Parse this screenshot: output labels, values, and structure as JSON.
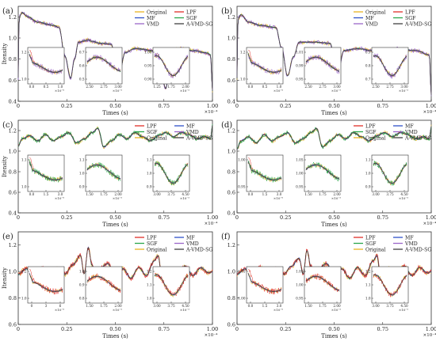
{
  "figure": {
    "legend_entries": [
      "Original",
      "LPF",
      "MF",
      "SGF",
      "VMD",
      "A-VMD-SG"
    ],
    "colors": {
      "Original": "#e8b422",
      "LPF": "#e0302a",
      "MF": "#2f52c8",
      "SGF": "#2aa64a",
      "VMD": "#9a66c8",
      "A-VMD-SG": "#404040"
    }
  },
  "chart_data": [
    {
      "panel": "(a)",
      "type": "line",
      "xlabel": "Times (s)",
      "ylabel": "Itensity",
      "x_multiplier": "×10⁻⁴",
      "xlim": [
        0,
        1
      ],
      "ylim": [
        0.4,
        1.3
      ],
      "xticks": [
        "0",
        "0.25",
        "0.50",
        "0.75",
        "1.00"
      ],
      "yticks": [
        "0.4",
        "0.6",
        "0.8",
        "1.0",
        "1.2"
      ],
      "legend": [
        "Original",
        "MF",
        "VMD",
        "LPF",
        "SGF",
        "A-VMD-SG"
      ],
      "legend_position": "top-right",
      "highlight": "VMD",
      "series_shape": [
        [
          0,
          0.62
        ],
        [
          0.005,
          1.2
        ],
        [
          0.02,
          1.24
        ],
        [
          0.05,
          1.2
        ],
        [
          0.1,
          1.15
        ],
        [
          0.18,
          1.12
        ],
        [
          0.21,
          1.1
        ],
        [
          0.24,
          0.83
        ],
        [
          0.27,
          0.62
        ],
        [
          0.29,
          0.8
        ],
        [
          0.31,
          0.96
        ],
        [
          0.36,
          0.98
        ],
        [
          0.38,
          0.97
        ],
        [
          0.42,
          0.95
        ],
        [
          0.48,
          0.94
        ],
        [
          0.5,
          0.8
        ],
        [
          0.52,
          0.66
        ],
        [
          0.55,
          0.86
        ],
        [
          0.6,
          0.9
        ],
        [
          0.7,
          0.88
        ],
        [
          0.73,
          0.72
        ],
        [
          0.76,
          0.52
        ],
        [
          0.78,
          0.74
        ],
        [
          0.82,
          0.9
        ],
        [
          0.9,
          0.88
        ],
        [
          0.97,
          0.86
        ],
        [
          0.99,
          0.84
        ],
        [
          1.0,
          0.5
        ]
      ],
      "insets": [
        {
          "xticks": [
            "0.0",
            "0.5",
            "1.0"
          ],
          "yticks": [
            "1.2",
            "1.0"
          ],
          "tick_multiplier": "×10⁻⁶"
        },
        {
          "xticks": [
            "2.50",
            "2.75",
            "3.00"
          ],
          "yticks": [
            "0.7",
            "0.6",
            "0.5"
          ],
          "tick_multiplier": "×10⁻⁵"
        },
        {
          "xticks": [
            "1.25",
            "1.75",
            "2.00"
          ],
          "yticks": [
            "1.00",
            "0.95",
            "0.90"
          ],
          "tick_multiplier": "×10⁻⁵"
        }
      ]
    },
    {
      "panel": "(b)",
      "type": "line",
      "xlabel": "Times (s)",
      "ylabel": "",
      "x_multiplier": "×10⁻⁴",
      "xlim": [
        0,
        1
      ],
      "ylim": [
        0.4,
        1.3
      ],
      "xticks": [
        "0",
        "0.25",
        "0.50",
        "0.75",
        "1.00"
      ],
      "yticks": [
        "0.4",
        "0.6",
        "0.8",
        "1.0",
        "1.2"
      ],
      "legend": [
        "Original",
        "MF",
        "VMD",
        "LPF",
        "SGF",
        "A-VMD-SG"
      ],
      "legend_position": "top-right",
      "highlight": "VMD",
      "series_shape": [
        [
          0,
          0.62
        ],
        [
          0.005,
          1.18
        ],
        [
          0.02,
          1.22
        ],
        [
          0.06,
          1.15
        ],
        [
          0.12,
          1.12
        ],
        [
          0.2,
          1.1
        ],
        [
          0.23,
          0.9
        ],
        [
          0.26,
          0.64
        ],
        [
          0.29,
          0.82
        ],
        [
          0.32,
          0.96
        ],
        [
          0.4,
          0.96
        ],
        [
          0.48,
          0.95
        ],
        [
          0.5,
          0.82
        ],
        [
          0.52,
          0.68
        ],
        [
          0.55,
          0.88
        ],
        [
          0.62,
          0.9
        ],
        [
          0.7,
          0.88
        ],
        [
          0.72,
          0.7
        ],
        [
          0.74,
          0.58
        ],
        [
          0.76,
          0.74
        ],
        [
          0.82,
          0.9
        ],
        [
          0.92,
          0.88
        ],
        [
          0.99,
          0.84
        ],
        [
          1.0,
          0.46
        ]
      ],
      "insets": [
        {
          "xticks": [
            "0.0",
            "0.5",
            "1.0"
          ],
          "yticks": [
            "1.2",
            "1.0"
          ],
          "tick_multiplier": "×10⁻⁶"
        },
        {
          "xticks": [
            "2.50",
            "2.75",
            "3.00"
          ],
          "yticks": [
            "1.01",
            "0.99",
            "0.95"
          ],
          "tick_multiplier": "×10⁻⁵"
        },
        {
          "xticks": [
            "2.50",
            "2.75",
            "3.00"
          ],
          "yticks": [
            "0.9",
            "0.8",
            "0.7"
          ],
          "tick_multiplier": "×10⁻⁵"
        }
      ]
    },
    {
      "panel": "(c)",
      "type": "line",
      "xlabel": "Times (s)",
      "ylabel": "Itensity",
      "x_multiplier": "×10⁻⁴",
      "xlim": [
        0,
        1
      ],
      "ylim": [
        0.4,
        1.3
      ],
      "xticks": [
        "0",
        "0.25",
        "0.50",
        "0.75",
        "1.00"
      ],
      "yticks": [
        "0.4",
        "0.6",
        "0.8",
        "1.0",
        "1.2"
      ],
      "legend": [
        "LPF",
        "SGF",
        "Original",
        "MF",
        "VMD",
        "A-VMD-SG"
      ],
      "legend_position": "top-right",
      "highlight": "SGF",
      "series_shape": [
        [
          0,
          1.05
        ],
        [
          0.02,
          1.12
        ],
        [
          0.06,
          1.15
        ],
        [
          0.1,
          1.1
        ],
        [
          0.14,
          1.16
        ],
        [
          0.18,
          1.1
        ],
        [
          0.22,
          1.14
        ],
        [
          0.26,
          1.18
        ],
        [
          0.3,
          1.08
        ],
        [
          0.34,
          1.12
        ],
        [
          0.38,
          1.18
        ],
        [
          0.41,
          1.22
        ],
        [
          0.44,
          1.04
        ],
        [
          0.48,
          1.1
        ],
        [
          0.52,
          1.16
        ],
        [
          0.56,
          1.12
        ],
        [
          0.6,
          1.18
        ],
        [
          0.64,
          1.14
        ],
        [
          0.68,
          1.1
        ],
        [
          0.72,
          1.15
        ],
        [
          0.76,
          1.18
        ],
        [
          0.8,
          1.14
        ],
        [
          0.84,
          1.18
        ],
        [
          0.88,
          1.16
        ],
        [
          0.92,
          1.12
        ],
        [
          0.96,
          1.14
        ],
        [
          0.99,
          1.12
        ],
        [
          1.0,
          1.25
        ]
      ],
      "insets": [
        {
          "xticks": [
            "0.0",
            "1.5",
            "3.0"
          ],
          "yticks": [
            "1.1",
            "1.0"
          ],
          "tick_multiplier": "×10⁻⁶"
        },
        {
          "xticks": [
            "1.50",
            "1.75",
            "2.00"
          ],
          "yticks": [
            "1.1",
            "1.0",
            "0.9"
          ],
          "tick_multiplier": "×10⁻⁵"
        },
        {
          "xticks": [
            "3.00",
            "3.75",
            "4.50"
          ],
          "yticks": [
            "1.1",
            "1.0",
            "0.9"
          ],
          "tick_multiplier": "×10⁻⁵"
        }
      ]
    },
    {
      "panel": "(d)",
      "type": "line",
      "xlabel": "Times (s)",
      "ylabel": "",
      "x_multiplier": "×10⁻⁴",
      "xlim": [
        0,
        1
      ],
      "ylim": [
        0.4,
        1.3
      ],
      "xticks": [
        "0",
        "0.25",
        "0.50",
        "0.75",
        "1.00"
      ],
      "yticks": [
        "0.4",
        "0.6",
        "0.8",
        "1.0",
        "1.2"
      ],
      "legend": [
        "LPF",
        "SGF",
        "Original",
        "MF",
        "VMD",
        "A-VMD-SG"
      ],
      "legend_position": "top-right",
      "highlight": "SGF",
      "series_shape": [
        [
          0,
          1.02
        ],
        [
          0.02,
          1.1
        ],
        [
          0.06,
          1.14
        ],
        [
          0.1,
          1.08
        ],
        [
          0.14,
          1.16
        ],
        [
          0.18,
          1.1
        ],
        [
          0.22,
          1.14
        ],
        [
          0.26,
          1.18
        ],
        [
          0.3,
          1.08
        ],
        [
          0.34,
          1.12
        ],
        [
          0.38,
          1.18
        ],
        [
          0.41,
          1.22
        ],
        [
          0.44,
          1.04
        ],
        [
          0.48,
          1.1
        ],
        [
          0.52,
          1.16
        ],
        [
          0.56,
          1.12
        ],
        [
          0.6,
          1.18
        ],
        [
          0.64,
          1.14
        ],
        [
          0.68,
          1.1
        ],
        [
          0.72,
          1.15
        ],
        [
          0.76,
          1.18
        ],
        [
          0.8,
          1.14
        ],
        [
          0.84,
          1.18
        ],
        [
          0.88,
          1.16
        ],
        [
          0.92,
          1.12
        ],
        [
          0.96,
          1.14
        ],
        [
          0.99,
          1.12
        ],
        [
          1.0,
          1.24
        ]
      ],
      "insets": [
        {
          "xticks": [
            "0.0",
            "1.5",
            "3.0"
          ],
          "yticks": [
            "1.00",
            "0.95"
          ],
          "tick_multiplier": "×10⁻⁶"
        },
        {
          "xticks": [
            "1.50",
            "1.75",
            "2.00"
          ],
          "yticks": [
            "1.05",
            "1.00",
            "0.95"
          ],
          "tick_multiplier": "×10⁻⁵"
        },
        {
          "xticks": [
            "3.00",
            "3.75",
            "4.50"
          ],
          "yticks": [
            "1.1",
            "1.0",
            "0.9"
          ],
          "tick_multiplier": "×10⁻⁵"
        }
      ]
    },
    {
      "panel": "(e)",
      "type": "line",
      "xlabel": "Times (s)",
      "ylabel": "Itensity",
      "x_multiplier": "×10⁻⁴",
      "xlim": [
        0,
        1
      ],
      "ylim": [
        0.6,
        1.3
      ],
      "xticks": [
        "0",
        "0.25",
        "0.50",
        "0.75",
        "1.00"
      ],
      "yticks": [
        "0.6",
        "0.8",
        "1.0",
        "1.2"
      ],
      "legend": [
        "LPF",
        "SGF",
        "Original",
        "MF",
        "VMD",
        "A-VMD-SG"
      ],
      "legend_position": "top-right",
      "highlight": "LPF",
      "series_shape": [
        [
          0,
          0.98
        ],
        [
          0.04,
          1.02
        ],
        [
          0.08,
          0.98
        ],
        [
          0.12,
          1.03
        ],
        [
          0.16,
          0.97
        ],
        [
          0.2,
          1.02
        ],
        [
          0.24,
          0.98
        ],
        [
          0.28,
          1.05
        ],
        [
          0.32,
          1.12
        ],
        [
          0.34,
          0.98
        ],
        [
          0.36,
          1.18
        ],
        [
          0.38,
          1.05
        ],
        [
          0.4,
          0.94
        ],
        [
          0.42,
          1.02
        ],
        [
          0.46,
          1.06
        ],
        [
          0.5,
          0.98
        ],
        [
          0.54,
          1.02
        ],
        [
          0.58,
          0.95
        ],
        [
          0.62,
          1.03
        ],
        [
          0.66,
          0.97
        ],
        [
          0.7,
          1.08
        ],
        [
          0.72,
          1.12
        ],
        [
          0.74,
          0.96
        ],
        [
          0.78,
          1.02
        ],
        [
          0.82,
          0.98
        ],
        [
          0.86,
          1.04
        ],
        [
          0.9,
          0.97
        ],
        [
          0.94,
          1.03
        ],
        [
          0.98,
          0.99
        ],
        [
          1.0,
          1.0
        ]
      ],
      "insets": [
        {
          "xticks": [
            "0",
            "3",
            "6"
          ],
          "yticks": [
            "1.2",
            "1.0"
          ],
          "tick_multiplier": "×10⁻⁶"
        },
        {
          "xticks": [
            "1.50",
            "1.75",
            "2.00"
          ],
          "yticks": [
            "1.0",
            "0.9",
            "0.8"
          ],
          "tick_multiplier": "×10⁻⁵"
        },
        {
          "xticks": [
            "3.00",
            "3.75",
            "4.50"
          ],
          "yticks": [
            "1.2",
            "1.1",
            "1.0"
          ],
          "tick_multiplier": "×10⁻⁵"
        }
      ]
    },
    {
      "panel": "(f)",
      "type": "line",
      "xlabel": "Times (s)",
      "ylabel": "",
      "x_multiplier": "×10⁻⁴",
      "xlim": [
        0,
        1
      ],
      "ylim": [
        0.6,
        1.3
      ],
      "xticks": [
        "0",
        "0.25",
        "0.50",
        "0.75",
        "1.00"
      ],
      "yticks": [
        "0.6",
        "0.8",
        "1.0",
        "1.2"
      ],
      "legend": [
        "LPF",
        "SGF",
        "Original",
        "MF",
        "VMD",
        "A-VMD-SG"
      ],
      "legend_position": "top-right",
      "highlight": "LPF",
      "series_shape": [
        [
          0,
          0.98
        ],
        [
          0.04,
          1.02
        ],
        [
          0.08,
          0.97
        ],
        [
          0.12,
          1.03
        ],
        [
          0.16,
          0.96
        ],
        [
          0.2,
          1.02
        ],
        [
          0.24,
          0.98
        ],
        [
          0.28,
          1.04
        ],
        [
          0.32,
          1.1
        ],
        [
          0.34,
          0.98
        ],
        [
          0.36,
          1.16
        ],
        [
          0.38,
          1.04
        ],
        [
          0.4,
          0.94
        ],
        [
          0.42,
          1.02
        ],
        [
          0.46,
          1.06
        ],
        [
          0.5,
          0.98
        ],
        [
          0.54,
          1.02
        ],
        [
          0.58,
          0.95
        ],
        [
          0.62,
          1.03
        ],
        [
          0.66,
          0.97
        ],
        [
          0.7,
          1.08
        ],
        [
          0.72,
          1.12
        ],
        [
          0.74,
          0.96
        ],
        [
          0.78,
          1.02
        ],
        [
          0.82,
          0.98
        ],
        [
          0.86,
          1.04
        ],
        [
          0.9,
          0.97
        ],
        [
          0.94,
          1.03
        ],
        [
          0.98,
          0.99
        ],
        [
          1.0,
          1.0
        ]
      ],
      "insets": [
        {
          "xticks": [
            "0.0",
            "1.5",
            "3.0"
          ],
          "yticks": [
            "1.05",
            "1.00"
          ],
          "tick_multiplier": "×10⁻⁶"
        },
        {
          "xticks": [
            "1.50",
            "1.75",
            "2.00"
          ],
          "yticks": [
            "1.05",
            "1.00",
            "0.95"
          ],
          "tick_multiplier": "×10⁻⁵"
        },
        {
          "xticks": [
            "3.00",
            "3.75",
            "4.50"
          ],
          "yticks": [
            "1.2",
            "1.1",
            "1.0"
          ],
          "tick_multiplier": "×10⁻⁵"
        }
      ]
    }
  ]
}
